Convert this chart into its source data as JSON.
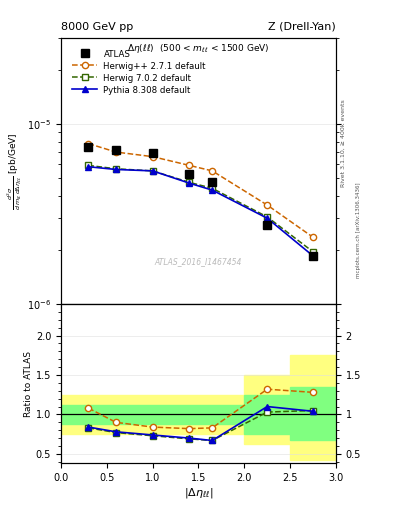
{
  "title_left": "8000 GeV pp",
  "title_right": "Z (Drell-Yan)",
  "panel_title": "Δη(ll) (500 < m_{ll} < 1500 GeV)",
  "ylabel_ratio": "Ratio to ATLAS",
  "watermark": "ATLAS_2016_I1467454",
  "rivet_label": "Rivet 3.1.10, ≥ 400k events",
  "mcplots_label": "mcplots.cern.ch [arXiv:1306.3436]",
  "x_atlas": [
    0.3,
    0.6,
    1.0,
    1.4,
    1.65,
    2.25,
    2.75
  ],
  "y_atlas": [
    7.5e-06,
    7.2e-06,
    6.9e-06,
    5.3e-06,
    4.8e-06,
    2.75e-06,
    1.85e-06
  ],
  "x_herwig271": [
    0.3,
    0.6,
    1.0,
    1.4,
    1.65,
    2.25,
    2.75
  ],
  "y_herwig271": [
    7.8e-06,
    7e-06,
    6.6e-06,
    5.9e-06,
    5.5e-06,
    3.55e-06,
    2.35e-06
  ],
  "x_herwig702": [
    0.3,
    0.6,
    1.0,
    1.4,
    1.65,
    2.25,
    2.75
  ],
  "y_herwig702": [
    5.9e-06,
    5.65e-06,
    5.5e-06,
    4.75e-06,
    4.4e-06,
    3.05e-06,
    1.95e-06
  ],
  "x_pythia": [
    0.3,
    0.6,
    1.0,
    1.4,
    1.65,
    2.25,
    2.75
  ],
  "y_pythia": [
    5.8e-06,
    5.6e-06,
    5.5e-06,
    4.7e-06,
    4.3e-06,
    3e-06,
    1.85e-06
  ],
  "ratio_herwig271": [
    1.08,
    0.9,
    0.84,
    0.82,
    0.83,
    1.32,
    1.28
  ],
  "ratio_herwig702": [
    0.83,
    0.77,
    0.73,
    0.69,
    0.67,
    1.03,
    1.05
  ],
  "ratio_pythia": [
    0.84,
    0.78,
    0.74,
    0.7,
    0.67,
    1.1,
    1.04
  ],
  "color_atlas": "#000000",
  "color_herwig271": "#cc6600",
  "color_herwig702": "#336600",
  "color_pythia": "#0000cc",
  "color_yellow": "#ffff80",
  "color_green": "#80ff80",
  "ylim_main": [
    1e-06,
    3e-05
  ],
  "ylim_ratio": [
    0.38,
    2.4
  ],
  "xlim": [
    0.0,
    3.0
  ],
  "band_steps": [
    {
      "xlo": 0.0,
      "xhi": 2.0,
      "ylo_y": 0.75,
      "yhi_y": 1.25,
      "ylo_g": 0.88,
      "yhi_g": 1.12
    },
    {
      "xlo": 2.0,
      "xhi": 2.5,
      "ylo_y": 0.62,
      "yhi_y": 1.5,
      "ylo_g": 0.75,
      "yhi_g": 1.25
    },
    {
      "xlo": 2.5,
      "xhi": 3.05,
      "ylo_y": 0.42,
      "yhi_y": 1.75,
      "ylo_g": 0.68,
      "yhi_g": 1.35
    }
  ]
}
